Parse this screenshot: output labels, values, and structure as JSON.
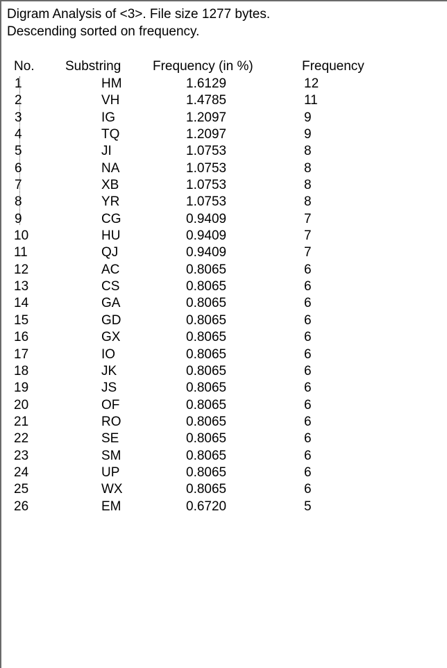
{
  "report": {
    "title_line": "Digram Analysis of <3>. File size 1277 bytes.",
    "sort_line": "Descending sorted on frequency.",
    "columns": {
      "no": "No.",
      "substring": "Substring",
      "freq_pct": "Frequency (in %)",
      "freq": "Frequency"
    },
    "rows": [
      {
        "no": "1",
        "substring": "HM",
        "pct": "1.6129",
        "freq": "12"
      },
      {
        "no": "2",
        "substring": "VH",
        "pct": "1.4785",
        "freq": "11"
      },
      {
        "no": "3",
        "substring": "IG",
        "pct": "1.2097",
        "freq": "9"
      },
      {
        "no": "4",
        "substring": "TQ",
        "pct": "1.2097",
        "freq": "9"
      },
      {
        "no": "5",
        "substring": "JI",
        "pct": "1.0753",
        "freq": "8"
      },
      {
        "no": "6",
        "substring": "NA",
        "pct": "1.0753",
        "freq": "8"
      },
      {
        "no": "7",
        "substring": "XB",
        "pct": "1.0753",
        "freq": "8"
      },
      {
        "no": "8",
        "substring": "YR",
        "pct": "1.0753",
        "freq": "8"
      },
      {
        "no": "9",
        "substring": "CG",
        "pct": "0.9409",
        "freq": "7"
      },
      {
        "no": "10",
        "substring": "HU",
        "pct": "0.9409",
        "freq": "7"
      },
      {
        "no": "11",
        "substring": "QJ",
        "pct": "0.9409",
        "freq": "7"
      },
      {
        "no": "12",
        "substring": "AC",
        "pct": "0.8065",
        "freq": "6"
      },
      {
        "no": "13",
        "substring": "CS",
        "pct": "0.8065",
        "freq": "6"
      },
      {
        "no": "14",
        "substring": "GA",
        "pct": "0.8065",
        "freq": "6"
      },
      {
        "no": "15",
        "substring": "GD",
        "pct": "0.8065",
        "freq": "6"
      },
      {
        "no": "16",
        "substring": "GX",
        "pct": "0.8065",
        "freq": "6"
      },
      {
        "no": "17",
        "substring": "IO",
        "pct": "0.8065",
        "freq": "6"
      },
      {
        "no": "18",
        "substring": "JK",
        "pct": "0.8065",
        "freq": "6"
      },
      {
        "no": "19",
        "substring": "JS",
        "pct": "0.8065",
        "freq": "6"
      },
      {
        "no": "20",
        "substring": "OF",
        "pct": "0.8065",
        "freq": "6"
      },
      {
        "no": "21",
        "substring": "RO",
        "pct": "0.8065",
        "freq": "6"
      },
      {
        "no": "22",
        "substring": "SE",
        "pct": "0.8065",
        "freq": "6"
      },
      {
        "no": "23",
        "substring": "SM",
        "pct": "0.8065",
        "freq": "6"
      },
      {
        "no": "24",
        "substring": "UP",
        "pct": "0.8065",
        "freq": "6"
      },
      {
        "no": "25",
        "substring": "WX",
        "pct": "0.8065",
        "freq": "6"
      },
      {
        "no": "26",
        "substring": "EM",
        "pct": "0.6720",
        "freq": "5"
      }
    ]
  }
}
